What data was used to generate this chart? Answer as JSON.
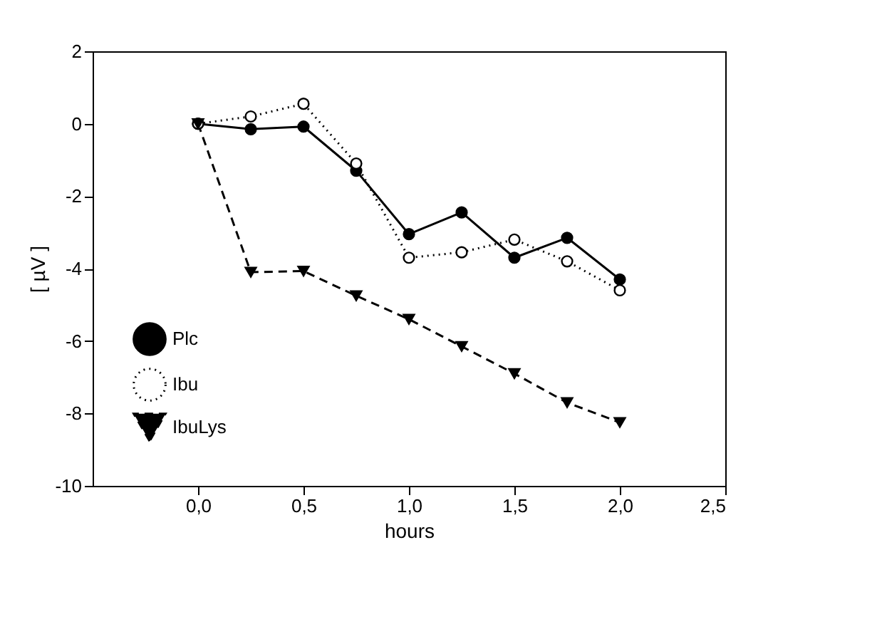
{
  "chart_data": {
    "type": "line",
    "xlabel": "hours",
    "ylabel": "[ µV ]",
    "x": [
      0,
      0.25,
      0.5,
      0.75,
      1.0,
      1.25,
      1.5,
      1.75,
      2.0
    ],
    "series": [
      {
        "name": "Plc",
        "color": "#000000",
        "marker": "circle",
        "line_style": "solid",
        "values": [
          0,
          -0.15,
          -0.08,
          -1.3,
          -3.05,
          -2.45,
          -3.7,
          -3.15,
          -4.3
        ]
      },
      {
        "name": "Ibu",
        "color": "#000000",
        "marker": "circle_open",
        "line_style": "dotted",
        "values": [
          0,
          0.2,
          0.55,
          -1.1,
          -3.7,
          -3.55,
          -3.2,
          -3.8,
          -4.6
        ]
      },
      {
        "name": "IbuLys",
        "color": "#000000",
        "marker": "triangle",
        "line_style": "dashed",
        "values": [
          0,
          -4.1,
          -4.07,
          -4.75,
          -5.4,
          -6.15,
          -6.9,
          -7.7,
          -8.25
        ]
      }
    ],
    "xlim": [
      -0.5,
      2.5
    ],
    "xticks": [
      {
        "value": 0,
        "label": "0,0"
      },
      {
        "value": 0.5,
        "label": "0,5"
      },
      {
        "value": 1.0,
        "label": "1,0"
      },
      {
        "value": 1.5,
        "label": "1,5"
      },
      {
        "value": 2.0,
        "label": "2,0"
      },
      {
        "value": 2.5,
        "label": "2,5"
      }
    ],
    "ylim": [
      -10,
      2
    ],
    "yticks": [
      -10,
      -8,
      -6,
      -4,
      -2,
      0,
      2
    ],
    "grid": false,
    "legend": "bottom left"
  }
}
